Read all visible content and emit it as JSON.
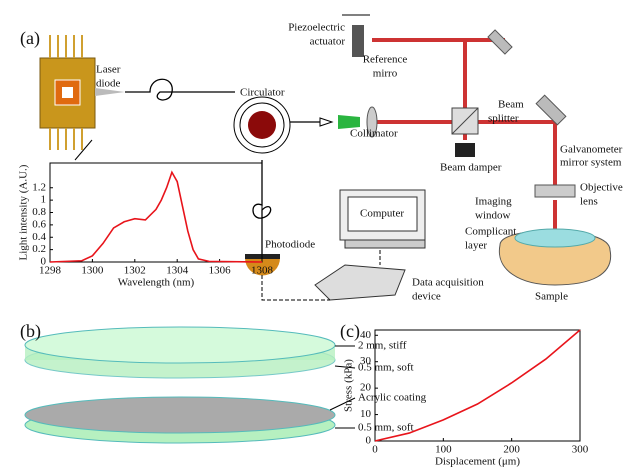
{
  "panel_a": {
    "label": "(a)",
    "laser_diode": [
      "Laser",
      "diode"
    ],
    "circulator": "Circulator",
    "piezo": [
      "Piezoelectric",
      "actuator"
    ],
    "reference_mirror": [
      "Reference",
      "mirro"
    ],
    "beam_splitter": [
      "Beam",
      "splitter"
    ],
    "collimator": "Collimator",
    "beam_damper": "Beam damper",
    "galvanometer": [
      "Galvanometer",
      "mirror system"
    ],
    "objective": [
      "Objective",
      "lens"
    ],
    "imaging_window": [
      "Imaging",
      "window"
    ],
    "compliant_layer": [
      "Complicant",
      "layer"
    ],
    "sample": "Sample",
    "computer": "Computer",
    "photodiode": "Photodiode",
    "daq": [
      "Data acquisition",
      "device"
    ]
  },
  "panel_b": {
    "label": "(b)",
    "stiff": "2 mm, stiff",
    "soft_top": "0.5 mm, soft",
    "coating": "Acrylic coating",
    "soft_bottom": "0.5 mm, soft"
  },
  "panel_c": {
    "label": "(c)"
  },
  "chart_data": [
    {
      "type": "line",
      "xlabel": "Wavelength (nm)",
      "ylabel": "Light intensity (A.U.)",
      "x": [
        1298,
        1299.5,
        1300,
        1300.5,
        1301,
        1301.5,
        1302,
        1302.5,
        1303,
        1303.25,
        1303.5,
        1303.75,
        1304,
        1304.25,
        1304.5,
        1304.75,
        1305,
        1305.5,
        1308
      ],
      "series": [
        {
          "color": "#e8141b",
          "values": [
            0,
            0.02,
            0.1,
            0.3,
            0.55,
            0.65,
            0.7,
            0.68,
            0.85,
            1.0,
            1.2,
            1.45,
            1.3,
            0.9,
            0.5,
            0.2,
            0.05,
            0.01,
            0
          ]
        }
      ],
      "xlim": [
        1298,
        1308
      ],
      "xticks": [
        1298,
        1300,
        1302,
        1304,
        1306,
        1308
      ],
      "ylim": [
        0,
        1.6
      ],
      "yticks": [
        0,
        0.2,
        0.4,
        0.6,
        0.8,
        1,
        1.2
      ]
    },
    {
      "type": "line",
      "xlabel": "Displacement (μm)",
      "ylabel": "Stress (kPa)",
      "x": [
        0,
        50,
        100,
        150,
        200,
        250,
        300
      ],
      "series": [
        {
          "color": "#e8141b",
          "values": [
            0,
            3,
            8,
            14,
            22,
            31,
            42
          ]
        }
      ],
      "xlim": [
        0,
        300
      ],
      "xticks": [
        0,
        100,
        200,
        300
      ],
      "ylim": [
        0,
        42
      ],
      "yticks": [
        0,
        10,
        20,
        30,
        40
      ]
    }
  ]
}
